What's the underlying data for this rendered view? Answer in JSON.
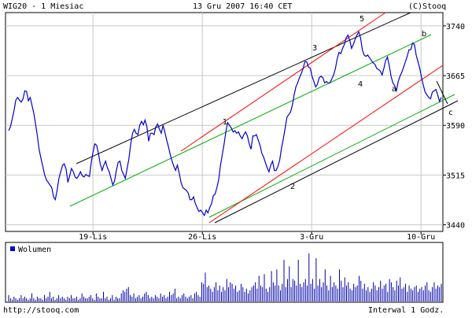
{
  "header": {
    "title": "WIG20 - 1 Miesiac",
    "datetime": "13 Gru 2007 16:40 CET",
    "copyright": "(C)Stooq"
  },
  "footer": {
    "url": "http://stooq.com",
    "interval": "Interwal 1 Godz."
  },
  "volume_panel": {
    "legend_label": "Wolumen"
  },
  "colors": {
    "price_line": "#0000cc",
    "volume_bars": "#0000aa",
    "channel_black": "#000000",
    "channel_red": "#ff0000",
    "channel_green": "#00aa00",
    "grid": "#c8c8c8",
    "panel_border": "#000000",
    "legend_swatch": "#0000cc"
  },
  "chart_data": [
    {
      "type": "line",
      "title": "WIG20 - 1 Miesiac",
      "xlabel": "",
      "ylabel": "",
      "ylim": [
        3430,
        3760
      ],
      "y_ticks": [
        3440,
        3515,
        3590,
        3665,
        3740
      ],
      "y_tick_labels": [
        "3440",
        "3515",
        "3590",
        "3665",
        "3740"
      ],
      "x_range": [
        0,
        120
      ],
      "x_ticks": [
        {
          "label": "19-Lis",
          "x": 24
        },
        {
          "label": "26-Lis",
          "x": 54
        },
        {
          "label": "3-Gru",
          "x": 84
        },
        {
          "label": "10-Gru",
          "x": 114
        }
      ],
      "grid": true,
      "series": [
        {
          "values": [
            3582,
            3588,
            3600,
            3612,
            3628,
            3632,
            3628,
            3625,
            3630,
            3642,
            3641,
            3627,
            3632,
            3620,
            3608,
            3592,
            3574,
            3553,
            3540,
            3528,
            3516,
            3508,
            3504,
            3500,
            3496,
            3482,
            3478,
            3492,
            3510,
            3520,
            3530,
            3532,
            3524,
            3504,
            3514,
            3525,
            3520,
            3512,
            3510,
            3514,
            3520,
            3514,
            3512,
            3516,
            3514,
            3513,
            3534,
            3550,
            3562,
            3560,
            3548,
            3532,
            3522,
            3530,
            3536,
            3526,
            3520,
            3510,
            3500,
            3506,
            3522,
            3534,
            3536,
            3522,
            3516,
            3510,
            3525,
            3540,
            3562,
            3578,
            3584,
            3578,
            3576,
            3590,
            3596,
            3591,
            3598,
            3588,
            3566,
            3578,
            3578,
            3576,
            3588,
            3592,
            3584,
            3578,
            3590,
            3580,
            3568,
            3558,
            3546,
            3536,
            3528,
            3522,
            3530,
            3518,
            3504,
            3496,
            3494,
            3492,
            3488,
            3478,
            3478,
            3482,
            3472,
            3466,
            3460,
            3462,
            3458,
            3454,
            3462,
            3458,
            3466,
            3472,
            3484,
            3486,
            3496,
            3508,
            3530,
            3546,
            3562,
            3580,
            3594,
            3590,
            3586,
            3580,
            3582,
            3578,
            3580,
            3574,
            3570,
            3576,
            3580,
            3574,
            3562,
            3554,
            3574,
            3574,
            3576,
            3568,
            3560,
            3548,
            3542,
            3534,
            3526,
            3520,
            3530,
            3536,
            3522,
            3522,
            3528,
            3538,
            3556,
            3570,
            3586,
            3602,
            3606,
            3610,
            3620,
            3636,
            3648,
            3654,
            3662,
            3668,
            3676,
            3686,
            3686,
            3678,
            3676,
            3664,
            3656,
            3648,
            3652,
            3662,
            3664,
            3662,
            3654,
            3656,
            3654,
            3654,
            3660,
            3666,
            3676,
            3690,
            3700,
            3698,
            3706,
            3712,
            3722,
            3726,
            3718,
            3706,
            3712,
            3720,
            3726,
            3731,
            3722,
            3704,
            3696,
            3694,
            3696,
            3692,
            3688,
            3684,
            3682,
            3676,
            3674,
            3672,
            3666,
            3676,
            3688,
            3693,
            3680,
            3664,
            3654,
            3650,
            3642,
            3656,
            3664,
            3670,
            3678,
            3686,
            3694,
            3704,
            3704,
            3714,
            3712,
            3696,
            3686,
            3676,
            3662,
            3650,
            3640,
            3636,
            3632,
            3630,
            3640,
            3642,
            3644,
            3636,
            3626,
            3632
          ]
        }
      ],
      "annotations": [
        "1",
        "2",
        "3",
        "4",
        "5",
        "a",
        "b",
        "c"
      ]
    },
    {
      "type": "bar",
      "title": "Wolumen",
      "legend": [
        "Wolumen"
      ],
      "values": [
        4,
        2,
        1,
        3,
        2,
        1,
        2,
        4,
        2,
        3,
        2,
        1,
        2,
        5,
        2,
        1,
        3,
        2,
        2,
        1,
        4,
        2,
        3,
        6,
        2,
        3,
        1,
        2,
        4,
        2,
        3,
        2,
        1,
        3,
        2,
        4,
        2,
        2,
        3,
        1,
        2,
        5,
        3,
        2,
        2,
        3,
        4,
        2,
        1,
        5,
        3,
        2,
        2,
        6,
        2,
        3,
        1,
        2,
        4,
        1,
        3,
        2,
        2,
        5,
        7,
        6,
        8,
        9,
        4,
        3,
        5,
        2,
        3,
        4,
        2,
        3,
        5,
        6,
        4,
        2,
        3,
        2,
        4,
        3,
        2,
        5,
        3,
        4,
        2,
        3,
        6,
        4,
        5,
        8,
        2,
        3,
        2,
        4,
        5,
        3,
        2,
        3,
        4,
        2,
        5,
        6,
        4,
        3,
        12,
        11,
        18,
        9,
        10,
        8,
        6,
        9,
        12,
        7,
        10,
        6,
        9,
        7,
        14,
        9,
        12,
        11,
        8,
        10,
        6,
        7,
        11,
        9,
        6,
        8,
        5,
        7,
        9,
        10,
        12,
        8,
        16,
        10,
        9,
        17,
        8,
        6,
        9,
        19,
        12,
        10,
        20,
        10,
        7,
        11,
        26,
        9,
        14,
        22,
        9,
        14,
        13,
        10,
        26,
        11,
        9,
        12,
        14,
        10,
        30,
        11,
        14,
        8,
        27,
        10,
        14,
        9,
        12,
        20,
        10,
        7,
        16,
        9,
        12,
        10,
        8,
        20,
        13,
        9,
        15,
        10,
        12,
        8,
        7,
        11,
        9,
        10,
        16,
        13,
        8,
        11,
        7,
        9,
        6,
        8,
        12,
        10,
        7,
        9,
        13,
        8,
        10,
        11,
        6,
        14,
        12,
        9,
        7,
        13,
        10,
        15,
        8,
        9,
        11,
        6,
        10,
        8,
        7,
        9,
        10,
        6,
        8,
        9,
        7,
        10,
        12,
        7,
        6,
        9,
        12,
        8,
        10,
        9,
        11
      ]
    }
  ]
}
